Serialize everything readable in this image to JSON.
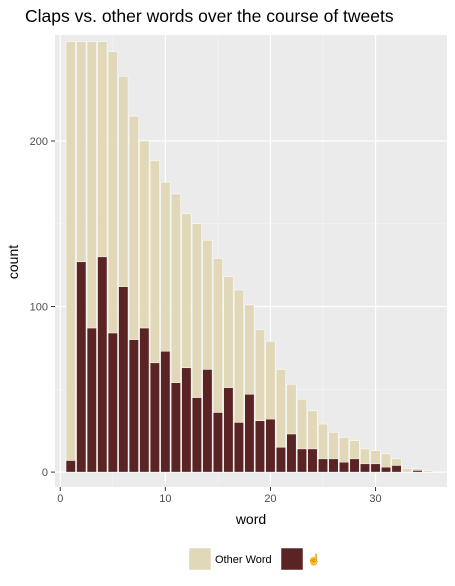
{
  "chart_data": {
    "type": "bar",
    "title": "Claps vs. other words over the course of tweets",
    "xlabel": "word",
    "ylabel": "count",
    "xlim": [
      -0.5,
      36.8
    ],
    "ylim": [
      -9,
      264
    ],
    "x_ticks": [
      0,
      10,
      20,
      30
    ],
    "y_ticks": [
      0,
      100,
      200
    ],
    "grid": true,
    "legend_position": "bottom",
    "x": [
      1,
      2,
      3,
      4,
      5,
      6,
      7,
      8,
      9,
      10,
      11,
      12,
      13,
      14,
      15,
      16,
      17,
      18,
      19,
      20,
      21,
      22,
      23,
      24,
      25,
      26,
      27,
      28,
      29,
      30,
      31,
      32,
      33,
      34,
      35
    ],
    "series": [
      {
        "name": "Other Word",
        "color": "#e0d8b8",
        "values": [
          260,
          260,
          260,
          260,
          254,
          239,
          215,
          200,
          188,
          175,
          168,
          156,
          150,
          140,
          129,
          118,
          110,
          101,
          86,
          79,
          62,
          53,
          44,
          37,
          29,
          24,
          21,
          19,
          14,
          13,
          11,
          8,
          2,
          2,
          1
        ]
      },
      {
        "name": "☝",
        "color": "#5a2424",
        "values": [
          7,
          127,
          87,
          130,
          84,
          112,
          80,
          87,
          66,
          73,
          54,
          63,
          45,
          62,
          36,
          51,
          30,
          47,
          31,
          32,
          15,
          23,
          14,
          14,
          8,
          8,
          6,
          8,
          5,
          5,
          3,
          4,
          0,
          1,
          0
        ]
      }
    ]
  }
}
